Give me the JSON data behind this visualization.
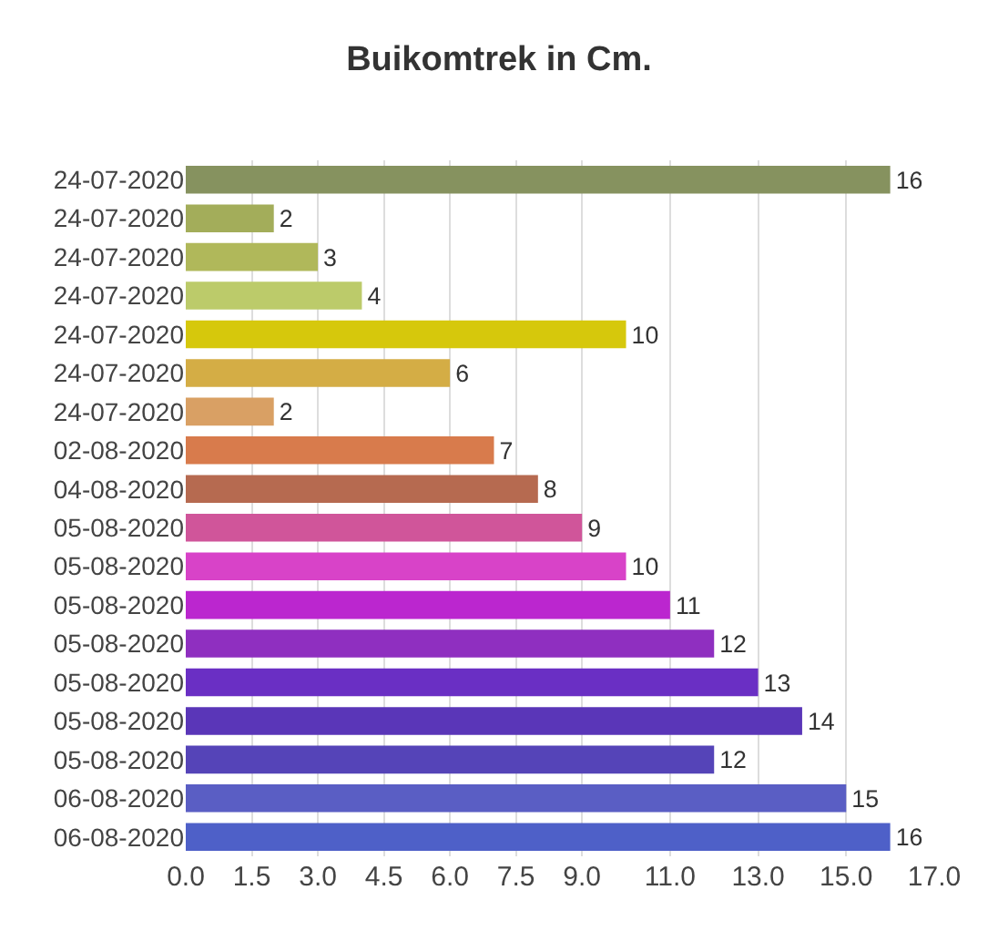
{
  "chart_data": {
    "type": "bar",
    "orientation": "horizontal",
    "title": "Buikomtrek in Cm.",
    "categories": [
      "24-07-2020",
      "24-07-2020",
      "24-07-2020",
      "24-07-2020",
      "24-07-2020",
      "24-07-2020",
      "24-07-2020",
      "02-08-2020",
      "04-08-2020",
      "05-08-2020",
      "05-08-2020",
      "05-08-2020",
      "05-08-2020",
      "05-08-2020",
      "05-08-2020",
      "05-08-2020",
      "06-08-2020",
      "06-08-2020"
    ],
    "values": [
      16,
      2,
      3,
      4,
      10,
      6,
      2,
      7,
      8,
      9,
      10,
      11,
      12,
      13,
      14,
      12,
      15,
      16
    ],
    "colors": [
      "#86925f",
      "#a3ad5a",
      "#b0b85a",
      "#bccb6a",
      "#d6c80c",
      "#d4ad45",
      "#d9a064",
      "#d87b4c",
      "#b66a50",
      "#d0559a",
      "#d843c8",
      "#bb26cf",
      "#8f2fc0",
      "#6a2fc4",
      "#5a36b8",
      "#5544b8",
      "#5a5ec4",
      "#4e60c8"
    ],
    "xlim": [
      0,
      17
    ],
    "xticks": [
      {
        "value": 0,
        "label": "0.0"
      },
      {
        "value": 1.5,
        "label": "1.5"
      },
      {
        "value": 3,
        "label": "3.0"
      },
      {
        "value": 4.5,
        "label": "4.5"
      },
      {
        "value": 6,
        "label": "6.0"
      },
      {
        "value": 7.5,
        "label": "7.5"
      },
      {
        "value": 9,
        "label": "9.0"
      },
      {
        "value": 11,
        "label": "11.0"
      },
      {
        "value": 13,
        "label": "13.0"
      },
      {
        "value": 15,
        "label": "15.0"
      },
      {
        "value": 17,
        "label": "17.0"
      }
    ],
    "grid": "x",
    "data_labels": true
  }
}
